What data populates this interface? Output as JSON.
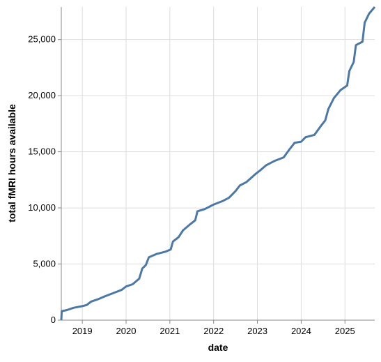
{
  "chart_data": {
    "type": "line",
    "x_label": "date",
    "y_label": "total fMRI hours available",
    "xlim": [
      2018.52,
      2025.68
    ],
    "ylim": [
      0,
      27900
    ],
    "xticks": [
      2019,
      2020,
      2021,
      2022,
      2023,
      2024,
      2025
    ],
    "yticks": [
      0,
      {
        "value": 5000,
        "label": "5,000"
      },
      {
        "value": 10000,
        "label": "10,000"
      },
      {
        "value": 15000,
        "label": "15,000"
      },
      {
        "value": 20000,
        "label": "20,000"
      },
      {
        "value": 25000,
        "label": "25,000"
      }
    ],
    "grid": true,
    "x": [
      2018.52,
      2018.53,
      2018.65,
      2018.8,
      2019.0,
      2019.1,
      2019.2,
      2019.35,
      2019.5,
      2019.7,
      2019.9,
      2020.0,
      2020.15,
      2020.3,
      2020.37,
      2020.45,
      2020.52,
      2020.7,
      2020.9,
      2021.02,
      2021.07,
      2021.2,
      2021.3,
      2021.45,
      2021.58,
      2021.63,
      2021.8,
      2022.0,
      2022.2,
      2022.35,
      2022.5,
      2022.6,
      2022.75,
      2022.95,
      2023.05,
      2023.2,
      2023.4,
      2023.6,
      2023.73,
      2023.85,
      2024.0,
      2024.1,
      2024.3,
      2024.45,
      2024.55,
      2024.62,
      2024.75,
      2024.9,
      2025.05,
      2025.1,
      2025.2,
      2025.25,
      2025.4,
      2025.45,
      2025.55,
      2025.68
    ],
    "series": [
      {
        "name": "total fMRI hours available",
        "color": "#4c78a8",
        "values": [
          0,
          800,
          900,
          1100,
          1250,
          1350,
          1650,
          1850,
          2100,
          2400,
          2700,
          3000,
          3200,
          3700,
          4600,
          4900,
          5600,
          5900,
          6100,
          6300,
          7000,
          7400,
          8000,
          8500,
          8900,
          9700,
          9900,
          10300,
          10600,
          10900,
          11500,
          12000,
          12300,
          13000,
          13300,
          13800,
          14200,
          14500,
          15200,
          15800,
          15900,
          16300,
          16500,
          17300,
          17800,
          18800,
          19800,
          20500,
          20900,
          22200,
          23000,
          24500,
          24800,
          26500,
          27300,
          27900
        ]
      }
    ]
  }
}
